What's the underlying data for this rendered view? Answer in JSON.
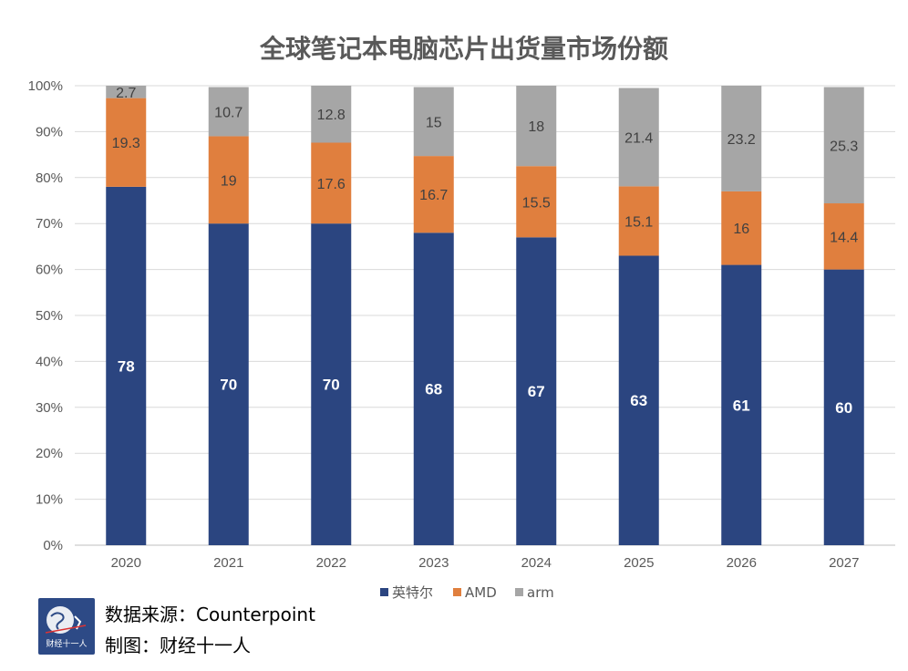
{
  "chart_data": {
    "type": "bar",
    "stacked": true,
    "title": "全球笔记本电脑芯片出货量市场份额",
    "categories": [
      "2020",
      "2021",
      "2022",
      "2023",
      "2024",
      "2025",
      "2026",
      "2027"
    ],
    "series": [
      {
        "name": "英特尔",
        "color": "#2b4580",
        "values": [
          78,
          70,
          70,
          68,
          67,
          63,
          61,
          60
        ],
        "labels": [
          "78",
          "70",
          "70",
          "68",
          "67",
          "63",
          "61",
          "60"
        ]
      },
      {
        "name": "AMD",
        "color": "#e07f3e",
        "values": [
          19.3,
          19,
          17.6,
          16.7,
          15.5,
          15.1,
          16,
          14.4
        ],
        "labels": [
          "19.3",
          "19",
          "17.6",
          "16.7",
          "15.5",
          "15.1",
          "16",
          "14.4"
        ]
      },
      {
        "name": "arm",
        "color": "#a6a6a6",
        "values": [
          2.7,
          10.7,
          12.8,
          15,
          18,
          21.4,
          23.2,
          25.3
        ],
        "labels": [
          "2.7",
          "10.7",
          "12.8",
          "15",
          "18",
          "21.4",
          "23.2",
          "25.3"
        ]
      }
    ],
    "ylim": [
      0,
      100
    ],
    "yticks": [
      "0%",
      "10%",
      "20%",
      "30%",
      "40%",
      "50%",
      "60%",
      "70%",
      "80%",
      "90%",
      "100%"
    ],
    "grid": true,
    "legend": "bottom",
    "xlabel": "",
    "ylabel": ""
  },
  "footer": {
    "source_line": "数据来源：Counterpoint",
    "credit_line": "制图：财经十一人",
    "logo_text": "财经十一人"
  }
}
